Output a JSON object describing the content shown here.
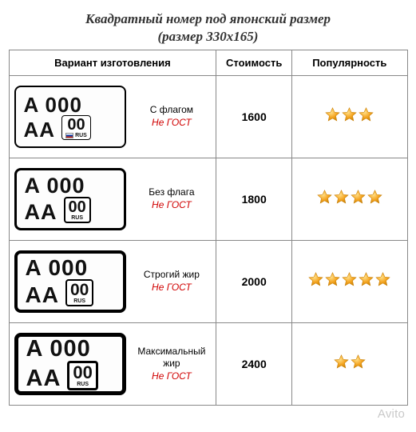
{
  "title": "Квадратный номер под японский размер",
  "subtitle": "(размер 330х165)",
  "headers": {
    "variant": "Вариант изготовления",
    "price": "Стоимость",
    "popularity": "Популярность"
  },
  "plate_text": {
    "row1": "A 000",
    "aa": "AA",
    "region": "00",
    "rus": "RUS"
  },
  "rows": [
    {
      "name": "С флагом",
      "note": "Не ГОСТ",
      "price": "1600",
      "stars": 3,
      "border_px": 2,
      "font_top": 26,
      "font_aa": 26,
      "region_font": 20,
      "region_border": 1.5,
      "has_flag": true
    },
    {
      "name": "Без флага",
      "note": "Не ГОСТ",
      "price": "1800",
      "stars": 4,
      "border_px": 3,
      "font_top": 27,
      "font_aa": 27,
      "region_font": 20,
      "region_border": 2,
      "has_flag": false
    },
    {
      "name": "Строгий жир",
      "note": "Не ГОСТ",
      "price": "2000",
      "stars": 5,
      "border_px": 4,
      "font_top": 28,
      "font_aa": 28,
      "region_font": 21,
      "region_border": 2.5,
      "has_flag": false
    },
    {
      "name": "Максимальный жир",
      "note": "Не ГОСТ",
      "price": "2400",
      "stars": 2,
      "border_px": 5,
      "font_top": 29,
      "font_aa": 29,
      "region_font": 22,
      "region_border": 3,
      "has_flag": false
    }
  ],
  "colors": {
    "border": "#888888",
    "plate_border": "#000000",
    "text": "#111111",
    "note": "#d00000",
    "star_fill": "#f5a623",
    "star_stroke": "#c77d00",
    "watermark": "#c9c9c9"
  },
  "watermark": "Avito"
}
